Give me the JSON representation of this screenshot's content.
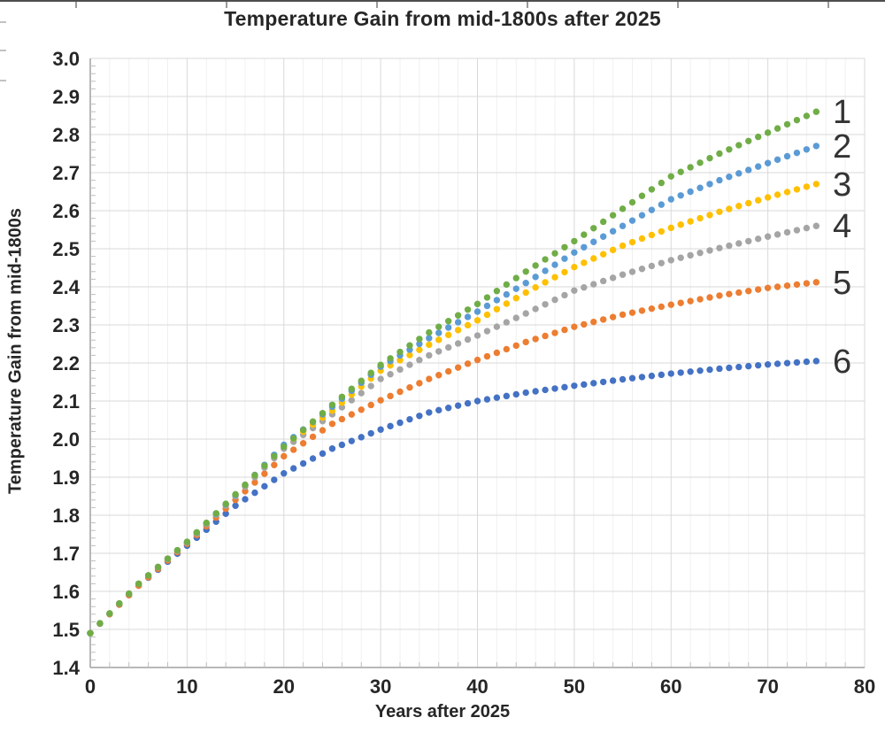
{
  "chart_data": {
    "type": "scatter",
    "title": "Temperature Gain from mid-1800s after 2025",
    "xlabel": "Years after 2025",
    "ylabel": "Temperature Gain from mid-1800s",
    "xlim": [
      0,
      80
    ],
    "ylim": [
      1.4,
      3.0
    ],
    "x_major_ticks": [
      0,
      10,
      20,
      30,
      40,
      50,
      60,
      70,
      80
    ],
    "y_major_ticks": [
      1.4,
      1.5,
      1.6,
      1.7,
      1.8,
      1.9,
      2.0,
      2.1,
      2.2,
      2.3,
      2.4,
      2.5,
      2.6,
      2.7,
      2.8,
      2.9,
      3.0
    ],
    "x_minor_step": 2,
    "y_minor_step": 0.02,
    "grid": {
      "major_color": "#d9d9d9",
      "minor_color": "#f0f0f0",
      "axis_color": "#a0a0a0",
      "tick_color": "#bfbfbf"
    },
    "point_interval_years": 1,
    "last_year": 75,
    "anchor_x": [
      0,
      5,
      10,
      15,
      20,
      25,
      30,
      35,
      40,
      45,
      50,
      55,
      60,
      65,
      70,
      75
    ],
    "series": [
      {
        "name": "1",
        "label": "1",
        "color": "#70AD47",
        "values": [
          1.49,
          1.62,
          1.73,
          1.855,
          1.98,
          2.09,
          2.195,
          2.28,
          2.355,
          2.44,
          2.52,
          2.605,
          2.69,
          2.75,
          2.805,
          2.86
        ]
      },
      {
        "name": "2",
        "label": "2",
        "color": "#5B9BD5",
        "values": [
          1.49,
          1.62,
          1.73,
          1.853,
          1.985,
          2.085,
          2.19,
          2.265,
          2.335,
          2.41,
          2.49,
          2.56,
          2.63,
          2.68,
          2.725,
          2.77
        ]
      },
      {
        "name": "3",
        "label": "3",
        "color": "#FFC000",
        "values": [
          1.49,
          1.62,
          1.73,
          1.853,
          1.983,
          2.075,
          2.18,
          2.248,
          2.312,
          2.385,
          2.452,
          2.508,
          2.555,
          2.597,
          2.635,
          2.67
        ]
      },
      {
        "name": "4",
        "label": "4",
        "color": "#A5A5A5",
        "values": [
          1.49,
          1.62,
          1.728,
          1.85,
          1.975,
          2.065,
          2.158,
          2.22,
          2.272,
          2.33,
          2.39,
          2.432,
          2.47,
          2.502,
          2.532,
          2.56
        ]
      },
      {
        "name": "5",
        "label": "5",
        "color": "#ED7D31",
        "values": [
          1.49,
          1.615,
          1.725,
          1.84,
          1.955,
          2.04,
          2.102,
          2.158,
          2.208,
          2.255,
          2.295,
          2.327,
          2.353,
          2.377,
          2.397,
          2.412
        ]
      },
      {
        "name": "6",
        "label": "6",
        "color": "#4472C4",
        "values": [
          1.49,
          1.615,
          1.72,
          1.825,
          1.91,
          1.975,
          2.025,
          2.07,
          2.1,
          2.122,
          2.14,
          2.157,
          2.172,
          2.185,
          2.196,
          2.205
        ]
      }
    ],
    "legend_position": "end-of-line-labels-right"
  }
}
